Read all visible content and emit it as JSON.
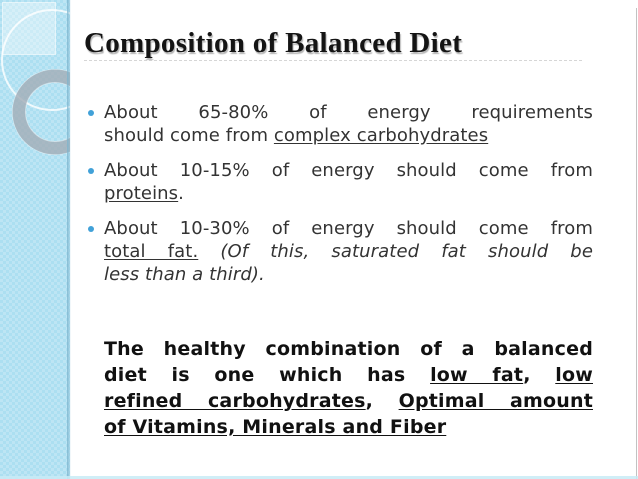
{
  "slide": {
    "title": "Composition of Balanced Diet",
    "bullets": [
      {
        "lines": [
          {
            "justify": true,
            "segments": [
              {
                "t": "About 65-80% of energy requirements"
              }
            ]
          },
          {
            "justify": false,
            "segments": [
              {
                "t": "should come from "
              },
              {
                "t": "complex carbohydrates",
                "u": true
              }
            ]
          }
        ]
      },
      {
        "lines": [
          {
            "justify": true,
            "segments": [
              {
                "t": "About 10-15% of energy should come from"
              }
            ]
          },
          {
            "justify": false,
            "segments": [
              {
                "t": "proteins",
                "u": true
              },
              {
                "t": "."
              }
            ]
          }
        ]
      },
      {
        "lines": [
          {
            "justify": true,
            "segments": [
              {
                "t": "About 10-30% of energy should come from"
              }
            ]
          },
          {
            "justify": true,
            "segments": [
              {
                "t": "total fat.",
                "u": true
              },
              {
                "t": " "
              },
              {
                "t": "(Of this, saturated fat should be",
                "i": true
              }
            ]
          },
          {
            "justify": false,
            "segments": [
              {
                "t": "less than a third).",
                "i": true
              }
            ]
          }
        ]
      }
    ],
    "summary": {
      "lines": [
        {
          "justify": true,
          "segments": [
            {
              "t": "The healthy combination of a balanced"
            }
          ]
        },
        {
          "justify": true,
          "segments": [
            {
              "t": "diet is one which has "
            },
            {
              "t": "low fat",
              "u": true
            },
            {
              "t": ", "
            },
            {
              "t": "low",
              "u": true
            }
          ]
        },
        {
          "justify": true,
          "segments": [
            {
              "t": "refined carbohydrates",
              "u": true
            },
            {
              "t": ", "
            },
            {
              "t": "Optimal amount",
              "u": true
            }
          ]
        },
        {
          "justify": false,
          "segments": [
            {
              "t": "of Vitamins, Minerals and Fiber",
              "u": true
            }
          ]
        }
      ]
    },
    "colors": {
      "sidebar_blue": "#ACDFF1",
      "sidebar_square": "rgba(255,255,255,0.38)",
      "ring_gray": "rgba(163,173,182,0.8)",
      "circle_white": "rgba(255,255,255,0.8)",
      "bullet_blue": "#41A1D8",
      "title_text": "#141414",
      "body_text": "#333333",
      "summary_text": "#111111"
    }
  }
}
